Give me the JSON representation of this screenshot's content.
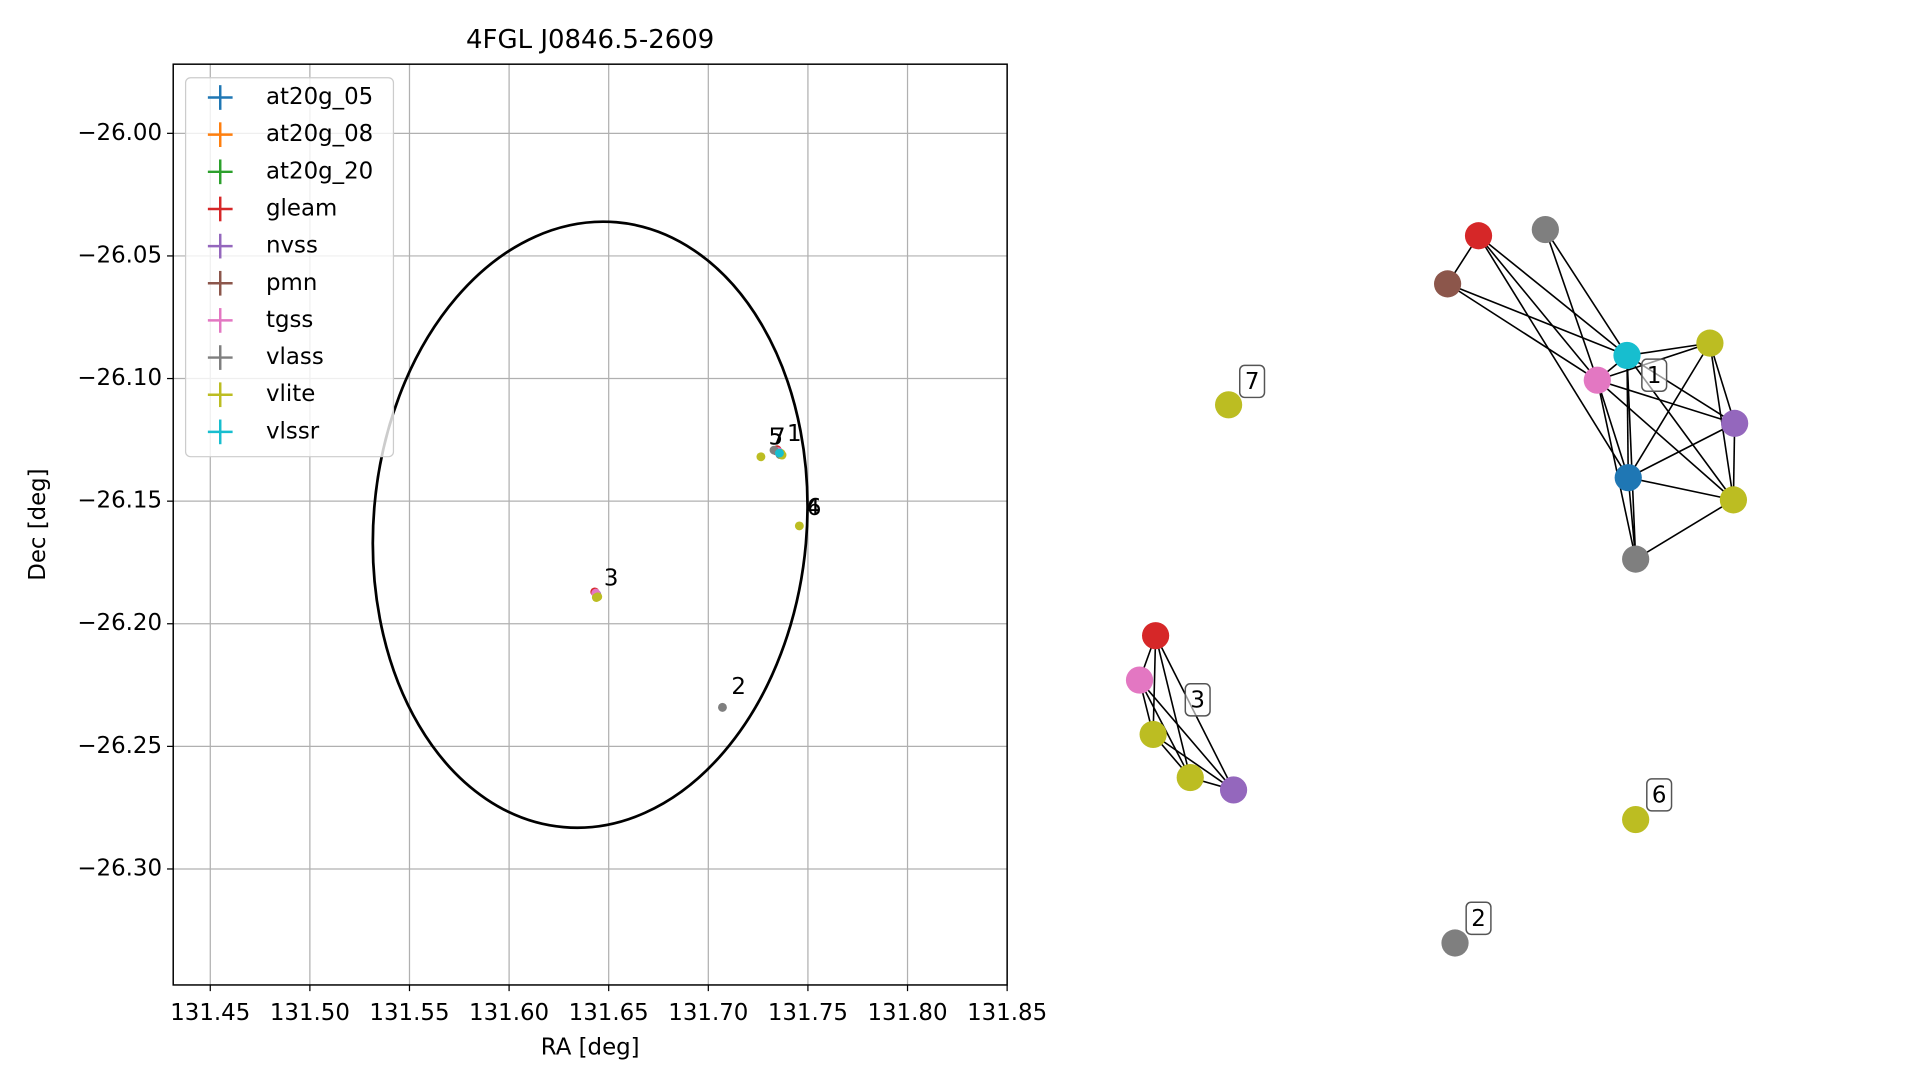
{
  "chart_data": {
    "type": "scatter",
    "title": "4FGL J0846.5-2609",
    "xlabel": "RA [deg]",
    "ylabel": "Dec [deg]",
    "xlim": [
      131.4314,
      131.85
    ],
    "ylim": [
      -26.3473,
      -25.9718
    ],
    "xticks": [
      {
        "value": 131.45,
        "label": "131.45"
      },
      {
        "value": 131.5,
        "label": "131.50"
      },
      {
        "value": 131.55,
        "label": "131.55"
      },
      {
        "value": 131.6,
        "label": "131.60"
      },
      {
        "value": 131.65,
        "label": "131.65"
      },
      {
        "value": 131.7,
        "label": "131.70"
      },
      {
        "value": 131.75,
        "label": "131.75"
      },
      {
        "value": 131.8,
        "label": "131.80"
      },
      {
        "value": 131.85,
        "label": "131.85"
      }
    ],
    "yticks": [
      {
        "value": -26.0,
        "label": "−26.00"
      },
      {
        "value": -26.05,
        "label": "−26.05"
      },
      {
        "value": -26.1,
        "label": "−26.10"
      },
      {
        "value": -26.15,
        "label": "−26.15"
      },
      {
        "value": -26.2,
        "label": "−26.20"
      },
      {
        "value": -26.25,
        "label": "−26.25"
      },
      {
        "value": -26.3,
        "label": "−26.30"
      }
    ],
    "grid": true,
    "legend": "upper left",
    "series": [
      {
        "name": "at20g_05",
        "color": "#1f77b4",
        "x": [
          131.736
        ],
        "y": [
          -26.1305
        ]
      },
      {
        "name": "at20g_08",
        "color": "#ff7f0e",
        "x": [],
        "y": []
      },
      {
        "name": "at20g_20",
        "color": "#2ca02c",
        "x": [],
        "y": []
      },
      {
        "name": "gleam",
        "color": "#d62728",
        "x": [
          131.7345,
          131.643
        ],
        "y": [
          -26.129,
          -26.187
        ]
      },
      {
        "name": "nvss",
        "color": "#9467bd",
        "x": [
          131.7355,
          131.644
        ],
        "y": [
          -26.13,
          -26.188
        ]
      },
      {
        "name": "pmn",
        "color": "#8c564b",
        "x": [
          131.734
        ],
        "y": [
          -26.1295
        ]
      },
      {
        "name": "tgss",
        "color": "#e377c2",
        "x": [
          131.735,
          131.6435
        ],
        "y": [
          -26.1298,
          -26.1875
        ]
      },
      {
        "name": "vlass",
        "color": "#7f7f7f",
        "x": [
          131.733,
          131.736,
          131.7071
        ],
        "y": [
          -26.1292,
          -26.131,
          -26.2341
        ]
      },
      {
        "name": "vlite",
        "color": "#bcbd22",
        "x": [
          131.7264,
          131.7365,
          131.737,
          131.6438,
          131.6445,
          131.7457
        ],
        "y": [
          -26.1319,
          -26.1305,
          -26.1312,
          -26.1893,
          -26.189,
          -26.1601
        ]
      },
      {
        "name": "vlssr",
        "color": "#17becf",
        "x": [
          131.7357
        ],
        "y": [
          -26.1304
        ]
      }
    ],
    "ellipse": {
      "ra": 131.6407,
      "dec": -26.1596,
      "semi_ra": 0.1087,
      "semi_dec": 0.1238,
      "angle": 5
    },
    "annotations": [
      "5",
      "7",
      "1",
      "3",
      "2",
      "4",
      "6"
    ]
  },
  "graph": {
    "labels": [
      "1",
      "3",
      "7",
      "2",
      "6"
    ]
  }
}
